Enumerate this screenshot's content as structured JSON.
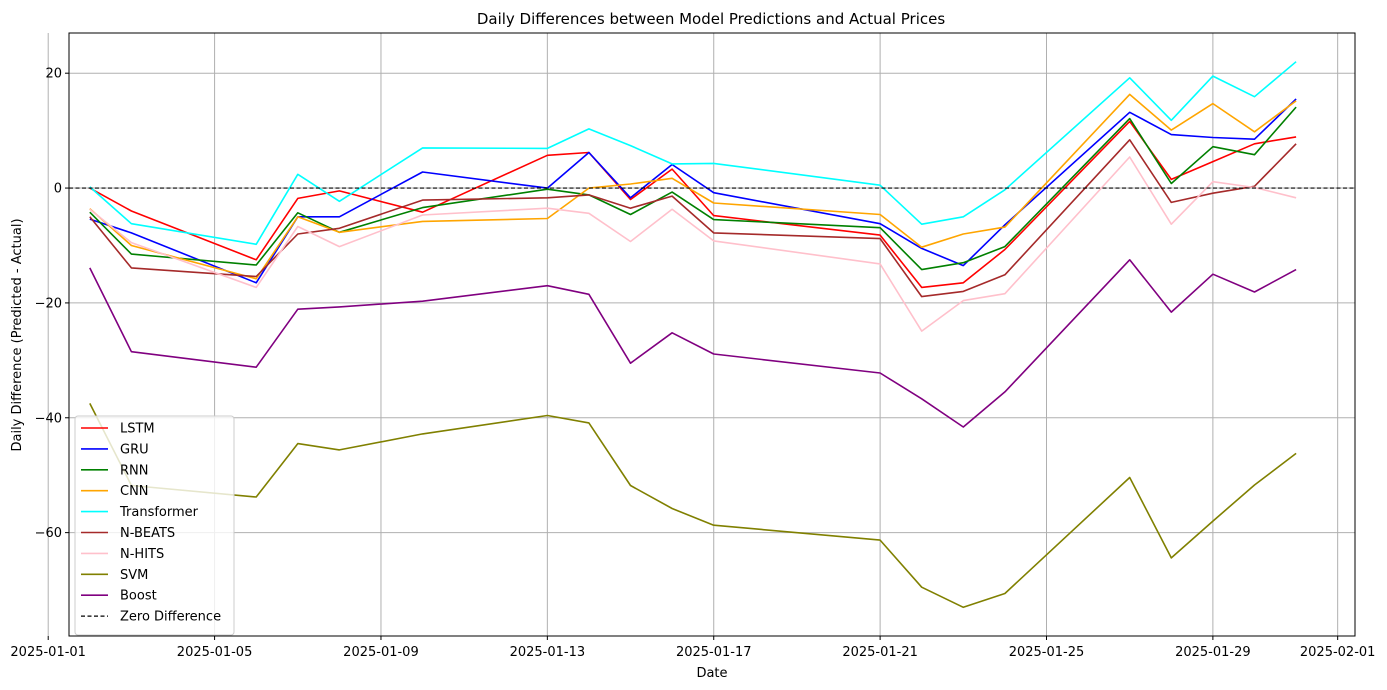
{
  "chart_data": {
    "type": "line",
    "title": "Daily Differences between Model Predictions and Actual Prices",
    "xlabel": "Date",
    "ylabel": "Daily Difference (Predicted - Actual)",
    "x": [
      "2025-01-02",
      "2025-01-03",
      "2025-01-06",
      "2025-01-07",
      "2025-01-08",
      "2025-01-10",
      "2025-01-13",
      "2025-01-14",
      "2025-01-15",
      "2025-01-16",
      "2025-01-17",
      "2025-01-21",
      "2025-01-22",
      "2025-01-23",
      "2025-01-24",
      "2025-01-27",
      "2025-01-28",
      "2025-01-29",
      "2025-01-30",
      "2025-01-31"
    ],
    "xlim": [
      "2025-01-01 12:00",
      "2025-02-01 10:00"
    ],
    "ylim": [
      -78,
      27
    ],
    "x_ticks": [
      "2025-01-01",
      "2025-01-05",
      "2025-01-09",
      "2025-01-13",
      "2025-01-17",
      "2025-01-21",
      "2025-01-25",
      "2025-01-29",
      "2025-02-01"
    ],
    "y_ticks": [
      20,
      0,
      -20,
      -40,
      -60
    ],
    "grid": true,
    "legend_position": "lower-left",
    "series": [
      {
        "name": "LSTM",
        "color": "#ff0000",
        "values": [
          0.0,
          -4.0,
          -12.5,
          -1.8,
          -0.5,
          -4.2,
          5.7,
          6.2,
          -2.0,
          3.3,
          -4.8,
          -8.2,
          -17.3,
          -16.5,
          -10.7,
          11.6,
          1.5,
          4.6,
          7.7,
          8.9
        ]
      },
      {
        "name": "GRU",
        "color": "#0000ff",
        "values": [
          -5.4,
          -7.8,
          -16.5,
          -5.0,
          -5.0,
          2.8,
          0.0,
          6.2,
          -1.7,
          4.1,
          -0.8,
          -6.2,
          -10.5,
          -13.5,
          -6.4,
          13.2,
          9.3,
          8.8,
          8.5,
          15.5
        ]
      },
      {
        "name": "RNN",
        "color": "#008000",
        "values": [
          -4.2,
          -11.5,
          -13.4,
          -4.3,
          -7.7,
          -3.4,
          -0.2,
          -1.2,
          -4.6,
          -0.7,
          -5.5,
          -6.9,
          -14.2,
          -13.0,
          -10.2,
          12.1,
          0.8,
          7.2,
          5.8,
          14.1
        ]
      },
      {
        "name": "CNN",
        "color": "#ffa500",
        "values": [
          -3.6,
          -10.0,
          -15.8,
          -5.0,
          -7.7,
          -5.8,
          -5.3,
          0.0,
          0.7,
          1.7,
          -2.6,
          -4.6,
          -10.3,
          -8.0,
          -6.8,
          16.3,
          10.1,
          14.7,
          9.8,
          15.2
        ]
      },
      {
        "name": "Transformer",
        "color": "#00ffff",
        "values": [
          0.2,
          -6.2,
          -9.8,
          2.4,
          -2.3,
          7.0,
          6.9,
          10.3,
          7.4,
          4.2,
          4.3,
          0.5,
          -6.3,
          -5.0,
          -0.3,
          19.2,
          11.8,
          19.5,
          15.9,
          22.0
        ]
      },
      {
        "name": "N-BEATS",
        "color": "#a52a2a",
        "values": [
          -5.0,
          -13.9,
          -15.4,
          -8.0,
          -7.0,
          -2.1,
          -1.7,
          -1.2,
          -3.5,
          -1.4,
          -7.8,
          -8.8,
          -18.9,
          -18.0,
          -15.1,
          8.4,
          -2.5,
          -0.9,
          0.3,
          7.7
        ]
      },
      {
        "name": "N-HITS",
        "color": "#ffc0cb",
        "values": [
          -3.7,
          -9.5,
          -17.3,
          -6.7,
          -10.2,
          -4.7,
          -3.5,
          -4.4,
          -9.3,
          -3.7,
          -9.2,
          -13.2,
          -24.9,
          -19.6,
          -18.4,
          5.4,
          -6.3,
          1.1,
          0.1,
          -1.7
        ]
      },
      {
        "name": "SVM",
        "color": "#808000",
        "values": [
          -37.5,
          -51.8,
          -53.8,
          -44.5,
          -45.6,
          -42.8,
          -39.6,
          -40.9,
          -51.8,
          -55.8,
          -58.7,
          -61.3,
          -69.5,
          -73.0,
          -70.6,
          -50.4,
          -64.4,
          -58.0,
          -51.7,
          -46.2
        ]
      },
      {
        "name": "Boost",
        "color": "#800080",
        "values": [
          -13.9,
          -28.5,
          -31.2,
          -21.1,
          -20.7,
          -19.7,
          -17.0,
          -18.5,
          -30.5,
          -25.2,
          -28.9,
          -32.2,
          -36.7,
          -41.6,
          -35.5,
          -12.5,
          -21.6,
          -15.0,
          -18.1,
          -14.2
        ]
      }
    ],
    "reference_line": {
      "name": "Zero Difference",
      "value": 0,
      "style": "dashed",
      "color": "#000000"
    }
  }
}
